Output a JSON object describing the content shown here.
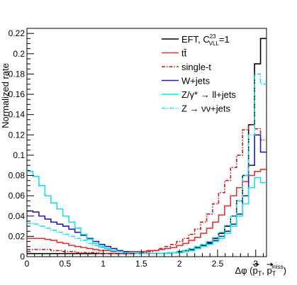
{
  "chart_data": {
    "type": "line",
    "step": true,
    "ylabel": "Normalized rate",
    "xlabel": "Δφ (p⃗T, p⃗Tmiss)",
    "xlabel_parts": {
      "main": "Δφ (",
      "p1": "p",
      "sub1": "T",
      "comma": ", ",
      "p2": "p",
      "sub2": "T",
      "sup2": "miss",
      "close": ")"
    },
    "xlim": [
      0,
      3.1416
    ],
    "ylim": [
      0,
      0.225
    ],
    "x_ticks": [
      0,
      0.5,
      1,
      1.5,
      2,
      2.5,
      3
    ],
    "x_tick_labels": [
      "0",
      "0.5",
      "1",
      "1.5",
      "2",
      "2.5",
      "3"
    ],
    "y_ticks": [
      0,
      0.02,
      0.04,
      0.06,
      0.08,
      0.1,
      0.12,
      0.14,
      0.16,
      0.18,
      0.2,
      0.22
    ],
    "y_tick_labels": [
      "0",
      "0.02",
      "0.04",
      "0.06",
      "0.08",
      "0.1",
      "0.12",
      "0.14",
      "0.16",
      "0.18",
      "0.2",
      "0.22"
    ],
    "bins": 40,
    "legend_position": "top-right",
    "series": [
      {
        "name": "EFT, C",
        "name_sup": "23",
        "name_sub": "VLL",
        "name_tail": "=1",
        "color": "#000000",
        "dash": "",
        "values": [
          0.003,
          0.003,
          0.003,
          0.003,
          0.003,
          0.003,
          0.003,
          0.003,
          0.003,
          0.003,
          0.003,
          0.003,
          0.003,
          0.003,
          0.003,
          0.003,
          0.003,
          0.003,
          0.003,
          0.003,
          0.003,
          0.003,
          0.003,
          0.003,
          0.004,
          0.005,
          0.006,
          0.007,
          0.009,
          0.011,
          0.014,
          0.018,
          0.023,
          0.03,
          0.04,
          0.055,
          0.08,
          0.13,
          0.19,
          0.215
        ]
      },
      {
        "name": "tt̄",
        "color": "#e8302e",
        "dash": "",
        "values": [
          0.018,
          0.018,
          0.018,
          0.017,
          0.016,
          0.014,
          0.013,
          0.011,
          0.01,
          0.009,
          0.008,
          0.007,
          0.006,
          0.006,
          0.005,
          0.005,
          0.005,
          0.005,
          0.005,
          0.005,
          0.006,
          0.006,
          0.007,
          0.008,
          0.009,
          0.011,
          0.013,
          0.016,
          0.019,
          0.023,
          0.028,
          0.034,
          0.041,
          0.05,
          0.06,
          0.068,
          0.074,
          0.08,
          0.084,
          0.086
        ]
      },
      {
        "name": "single-t",
        "color": "#d2191e",
        "dash": "5,2,1.5,2",
        "values": [
          0.007,
          0.007,
          0.007,
          0.007,
          0.006,
          0.006,
          0.005,
          0.005,
          0.004,
          0.004,
          0.004,
          0.004,
          0.003,
          0.003,
          0.003,
          0.003,
          0.003,
          0.003,
          0.004,
          0.004,
          0.005,
          0.006,
          0.008,
          0.01,
          0.012,
          0.015,
          0.018,
          0.022,
          0.027,
          0.034,
          0.042,
          0.052,
          0.063,
          0.075,
          0.088,
          0.1,
          0.125,
          0.13,
          0.126,
          0.115
        ]
      },
      {
        "name": "W+jets",
        "color": "#1f1fb4",
        "dash": "",
        "values": [
          0.045,
          0.044,
          0.04,
          0.037,
          0.034,
          0.032,
          0.03,
          0.027,
          0.024,
          0.021,
          0.018,
          0.015,
          0.012,
          0.01,
          0.008,
          0.006,
          0.005,
          0.004,
          0.004,
          0.003,
          0.003,
          0.003,
          0.003,
          0.003,
          0.004,
          0.004,
          0.005,
          0.006,
          0.008,
          0.01,
          0.013,
          0.016,
          0.02,
          0.025,
          0.032,
          0.042,
          0.06,
          0.09,
          0.12,
          0.103
        ]
      },
      {
        "name": "Z/γ* → ll+jets",
        "color": "#16e1ed",
        "dash": "",
        "values": [
          0.084,
          0.079,
          0.07,
          0.06,
          0.053,
          0.047,
          0.04,
          0.034,
          0.028,
          0.022,
          0.017,
          0.013,
          0.01,
          0.008,
          0.006,
          0.005,
          0.004,
          0.004,
          0.004,
          0.003,
          0.003,
          0.003,
          0.003,
          0.003,
          0.004,
          0.004,
          0.005,
          0.006,
          0.008,
          0.01,
          0.012,
          0.015,
          0.018,
          0.023,
          0.03,
          0.04,
          0.052,
          0.068,
          0.078,
          0.073
        ]
      },
      {
        "name": "Z → νν+jets",
        "color": "#16e1ed",
        "dash": "6,2,1.5,2",
        "values": [
          0.033,
          0.032,
          0.03,
          0.028,
          0.026,
          0.024,
          0.022,
          0.02,
          0.018,
          0.016,
          0.013,
          0.011,
          0.009,
          0.007,
          0.006,
          0.005,
          0.004,
          0.004,
          0.003,
          0.003,
          0.003,
          0.003,
          0.003,
          0.004,
          0.004,
          0.005,
          0.006,
          0.008,
          0.01,
          0.012,
          0.015,
          0.019,
          0.024,
          0.031,
          0.04,
          0.055,
          0.08,
          0.12,
          0.18,
          0.17
        ]
      }
    ]
  }
}
